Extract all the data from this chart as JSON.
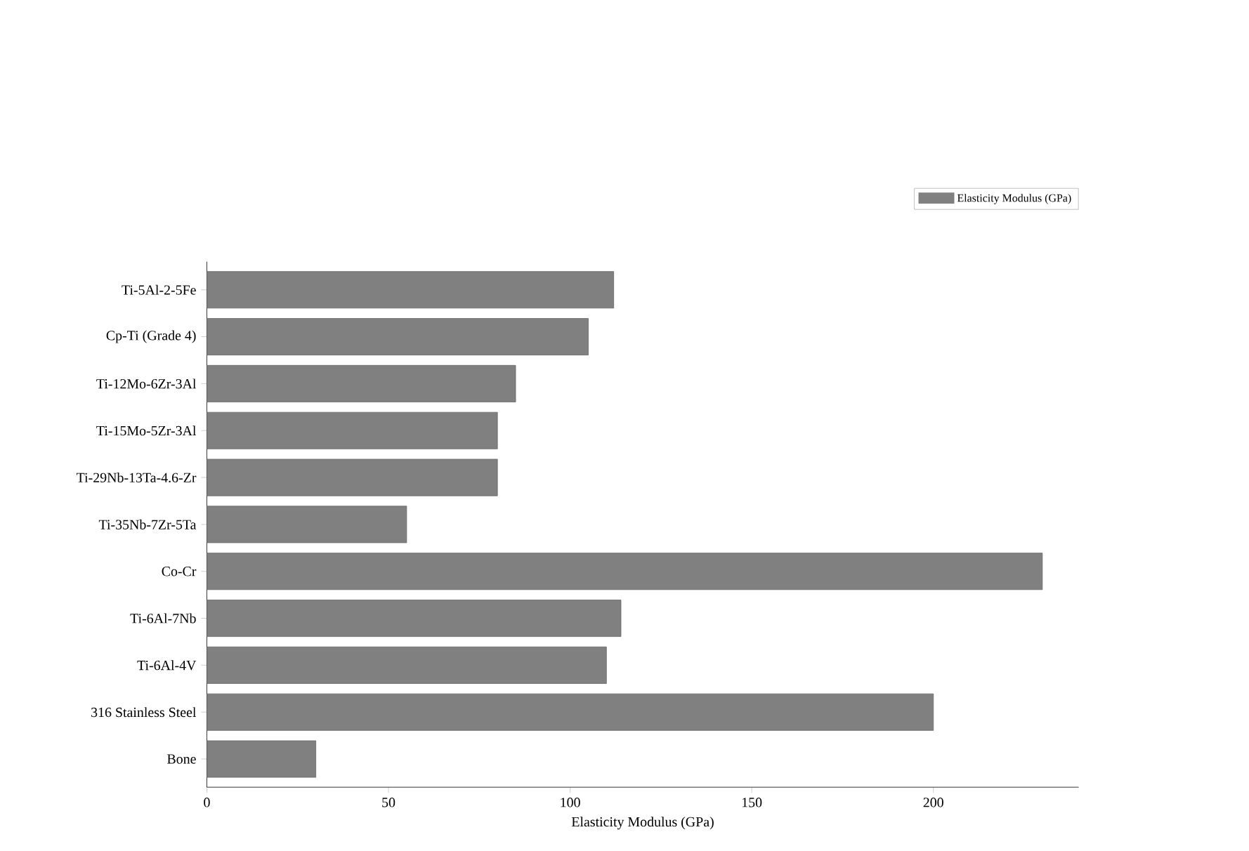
{
  "chart_data": {
    "type": "bar",
    "orientation": "horizontal",
    "xlabel": "Elasticity Modulus (GPa)",
    "categories": [
      "Ti-5Al-2-5Fe",
      "Cp-Ti (Grade 4)",
      "Ti-12Mo-6Zr-3Al",
      "Ti-15Mo-5Zr-3Al",
      "Ti-29Nb-13Ta-4.6-Zr",
      "Ti-35Nb-7Zr-5Ta",
      "Co-Cr",
      "Ti-6Al-7Nb",
      "Ti-6Al-4V",
      "316 Stainless Steel",
      "Bone"
    ],
    "series": [
      {
        "name": "Elasticity Modulus (GPa)",
        "color": "#808080",
        "values": [
          112,
          105,
          85,
          80,
          80,
          55,
          230,
          114,
          110,
          200,
          30
        ]
      }
    ],
    "xlim": [
      0,
      240
    ],
    "xticks": [
      0,
      50,
      100,
      150,
      200
    ],
    "grid": false,
    "legend": "top right"
  }
}
